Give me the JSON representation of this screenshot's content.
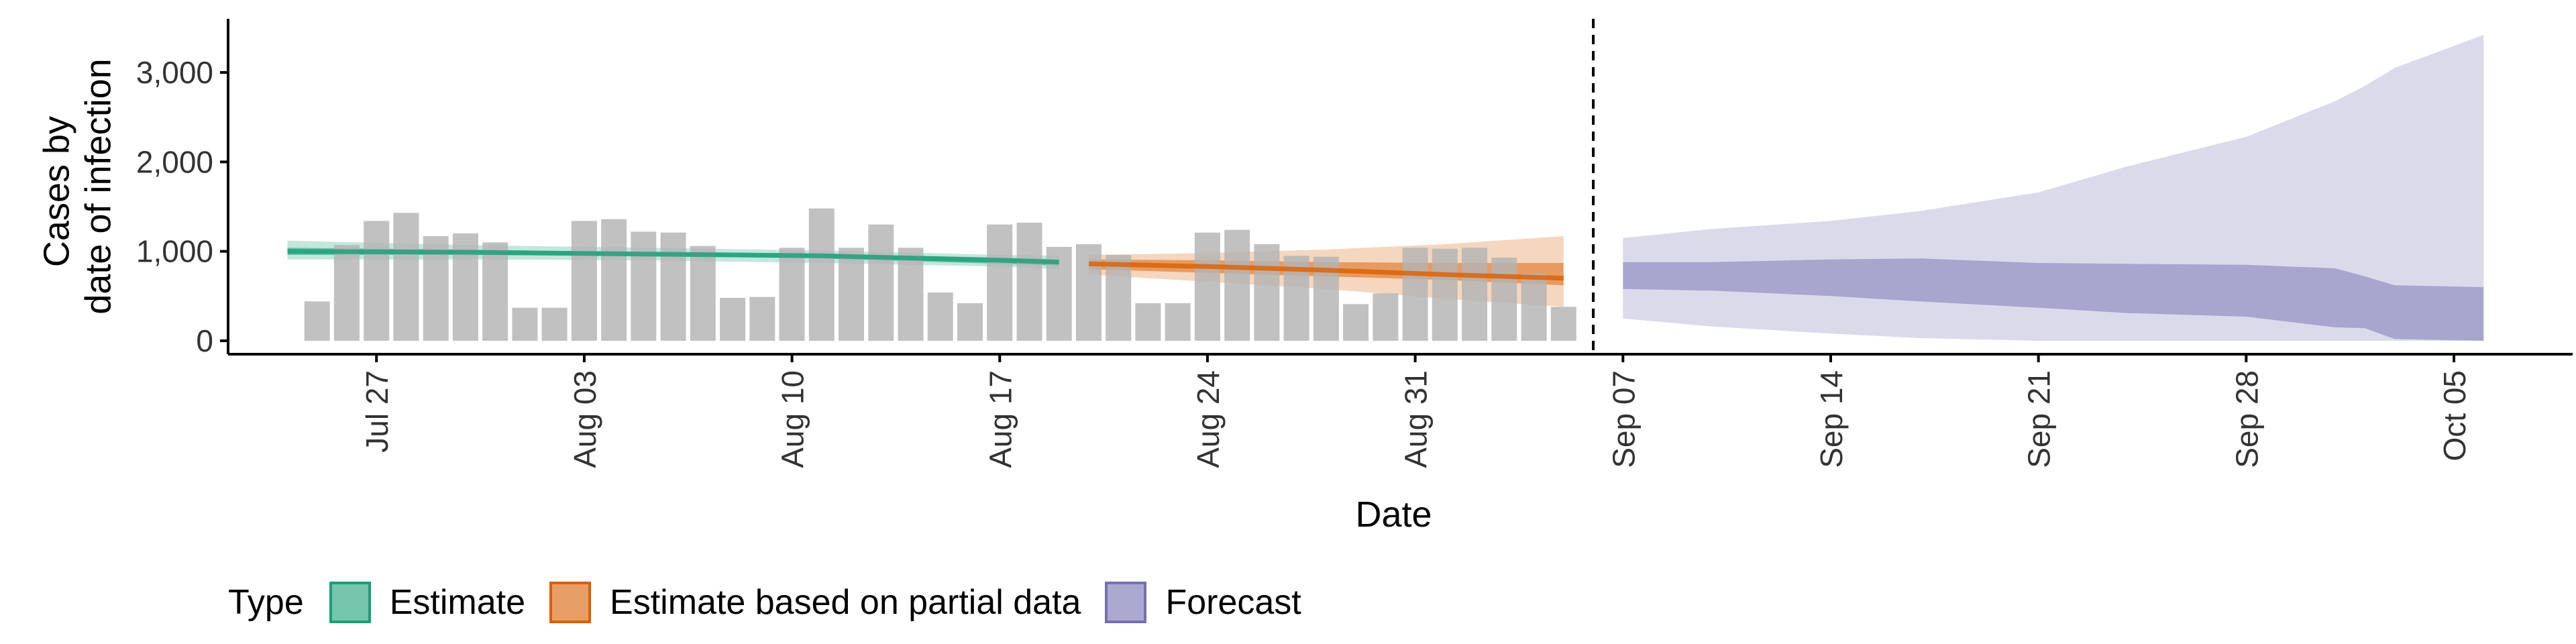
{
  "chart_data": {
    "type": "bar",
    "xlabel": "Date",
    "ylabel_lines": [
      "Cases by",
      "date of infection"
    ],
    "xlim": [
      "2020-07-22",
      "2020-10-09"
    ],
    "ylim": [
      -150,
      3600
    ],
    "x_ticks": [
      {
        "date": "2020-07-27",
        "label": "Jul 27"
      },
      {
        "date": "2020-08-03",
        "label": "Aug 03"
      },
      {
        "date": "2020-08-10",
        "label": "Aug 10"
      },
      {
        "date": "2020-08-17",
        "label": "Aug 17"
      },
      {
        "date": "2020-08-24",
        "label": "Aug 24"
      },
      {
        "date": "2020-08-31",
        "label": "Aug 31"
      },
      {
        "date": "2020-09-07",
        "label": "Sep 07"
      },
      {
        "date": "2020-09-14",
        "label": "Sep 14"
      },
      {
        "date": "2020-09-21",
        "label": "Sep 21"
      },
      {
        "date": "2020-09-28",
        "label": "Sep 28"
      },
      {
        "date": "2020-10-05",
        "label": "Oct 05"
      }
    ],
    "y_ticks": [
      {
        "value": 0,
        "label": "0"
      },
      {
        "value": 1000,
        "label": "1,000"
      },
      {
        "value": 2000,
        "label": "2,000"
      },
      {
        "value": 3000,
        "label": "3,000"
      }
    ],
    "observed_bars": {
      "start_date": "2020-07-25",
      "values": [
        440,
        1070,
        1340,
        1430,
        1170,
        1200,
        1100,
        370,
        370,
        1340,
        1360,
        1220,
        1210,
        1060,
        480,
        490,
        1040,
        1480,
        1040,
        1300,
        1040,
        540,
        420,
        1300,
        1320,
        1050,
        1080,
        960,
        420,
        420,
        1210,
        1240,
        1080,
        950,
        940,
        410,
        530,
        1040,
        1030,
        1040,
        930,
        750,
        380
      ]
    },
    "forecast_start": "2020-09-06",
    "series": [
      {
        "name": "Estimate",
        "color": "#1b9e77",
        "x": [
          "2020-07-24",
          "2020-07-30",
          "2020-08-05",
          "2020-08-11",
          "2020-08-17",
          "2020-08-19"
        ],
        "median": [
          1000,
          990,
          970,
          950,
          900,
          880
        ],
        "inner_lower": [
          960,
          960,
          950,
          920,
          860,
          840
        ],
        "inner_upper": [
          1040,
          1020,
          990,
          970,
          930,
          910
        ],
        "outer_lower": [
          910,
          910,
          900,
          870,
          830,
          800
        ],
        "outer_upper": [
          1120,
          1070,
          1040,
          1010,
          960,
          950
        ]
      },
      {
        "name": "Estimate based on partial data",
        "color": "#d95f02",
        "x": [
          "2020-08-20",
          "2020-08-24",
          "2020-08-28",
          "2020-09-01",
          "2020-09-05"
        ],
        "median": [
          860,
          830,
          790,
          740,
          700
        ],
        "inner_lower": [
          800,
          760,
          720,
          680,
          620
        ],
        "inner_upper": [
          910,
          900,
          880,
          870,
          870
        ],
        "outer_lower": [
          740,
          660,
          580,
          470,
          380
        ],
        "outer_upper": [
          960,
          980,
          1020,
          1080,
          1170
        ]
      },
      {
        "name": "Forecast",
        "color": "#7570b3",
        "x": [
          "2020-09-07",
          "2020-09-10",
          "2020-09-14",
          "2020-09-17",
          "2020-09-21",
          "2020-09-24",
          "2020-09-28",
          "2020-10-01",
          "2020-10-02",
          "2020-10-03",
          "2020-10-06"
        ],
        "inner_lower": [
          580,
          560,
          500,
          440,
          370,
          310,
          270,
          150,
          140,
          20,
          0
        ],
        "inner_upper": [
          880,
          880,
          910,
          920,
          870,
          860,
          850,
          810,
          720,
          620,
          600
        ],
        "outer_lower": [
          250,
          160,
          80,
          30,
          0,
          0,
          0,
          0,
          0,
          0,
          0
        ],
        "outer_upper": [
          1150,
          1250,
          1340,
          1450,
          1660,
          1950,
          2280,
          2680,
          2850,
          3050,
          3420
        ]
      }
    ],
    "legend": {
      "position": "bottom",
      "title": "Type",
      "items": [
        "Estimate",
        "Estimate based on partial data",
        "Forecast"
      ]
    },
    "grid": false
  }
}
